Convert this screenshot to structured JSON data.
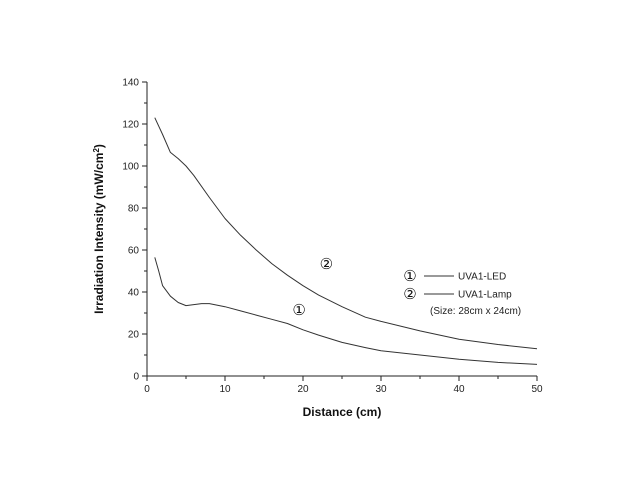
{
  "chart_data": {
    "type": "line",
    "title": "",
    "xlabel": "Distance (cm)",
    "ylabel": "Irradiation Intensity (mW/cm²)",
    "ylabel_main": "Irradiation Intensity (mW/cm",
    "ylabel_sup": "2",
    "ylabel_close": ")",
    "xlim": [
      0,
      50
    ],
    "ylim": [
      0,
      140
    ],
    "x_ticks": [
      0,
      10,
      20,
      30,
      40,
      50
    ],
    "y_ticks": [
      0,
      20,
      40,
      60,
      80,
      100,
      120,
      140
    ],
    "grid": false,
    "legend_position": "right",
    "series": [
      {
        "name": "UVA1-LED",
        "marker": "①",
        "color": "#333333",
        "x": [
          1,
          1.5,
          2,
          3,
          4,
          5,
          6,
          7,
          8,
          10,
          12,
          14,
          16,
          18,
          20,
          22,
          25,
          28,
          30,
          35,
          40,
          45,
          50
        ],
        "y": [
          56.5,
          50,
          43,
          38,
          35,
          33.5,
          34,
          34.5,
          34.5,
          33,
          31,
          29,
          27,
          25,
          22,
          19.5,
          16,
          13.5,
          12,
          10,
          8,
          6.5,
          5.5
        ]
      },
      {
        "name": "UVA1-Lamp",
        "marker": "②",
        "color": "#333333",
        "x": [
          1,
          2,
          3,
          4,
          5,
          6,
          8,
          10,
          12,
          14,
          16,
          18,
          20,
          22,
          25,
          28,
          30,
          35,
          40,
          45,
          50
        ],
        "y": [
          123,
          115,
          106.5,
          103.5,
          100,
          95.5,
          85,
          75,
          67,
          60,
          53.5,
          48,
          43,
          38.5,
          33,
          28,
          26,
          21.5,
          17.5,
          15,
          13
        ]
      }
    ],
    "legend_note": "(Size: 28cm x 24cm)",
    "annotations": [
      {
        "text": "①",
        "x": 19.5,
        "y": 29
      },
      {
        "text": "②",
        "x": 23,
        "y": 51
      }
    ]
  }
}
